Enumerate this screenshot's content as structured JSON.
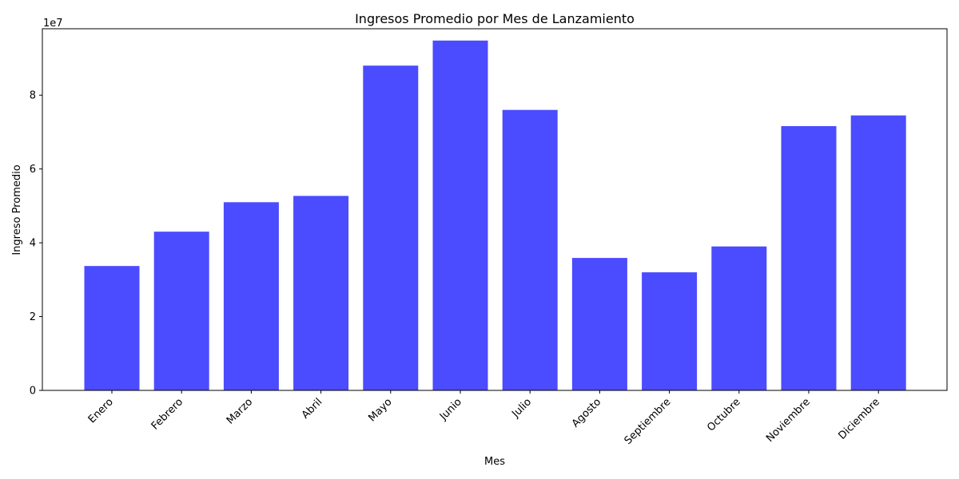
{
  "chart_data": {
    "type": "bar",
    "title": "Ingresos Promedio por Mes de Lanzamiento",
    "xlabel": "Mes",
    "ylabel": "Ingreso Promedio",
    "y_offset_label": "1e7",
    "categories": [
      "Enero",
      "Febrero",
      "Marzo",
      "Abril",
      "Mayo",
      "Junio",
      "Julio",
      "Agosto",
      "Septiembre",
      "Octubre",
      "Noviembre",
      "Diciembre"
    ],
    "values": [
      33700000,
      43000000,
      51000000,
      52700000,
      88000000,
      94800000,
      76000000,
      35900000,
      32000000,
      39000000,
      71600000,
      74500000
    ],
    "ylim": [
      0,
      98000000
    ],
    "yticks": [
      0,
      20000000,
      40000000,
      60000000,
      80000000
    ],
    "ytick_labels": [
      "0",
      "2",
      "4",
      "6",
      "8"
    ],
    "bar_color": "#4b4bff",
    "grid": false,
    "legend": "none"
  }
}
